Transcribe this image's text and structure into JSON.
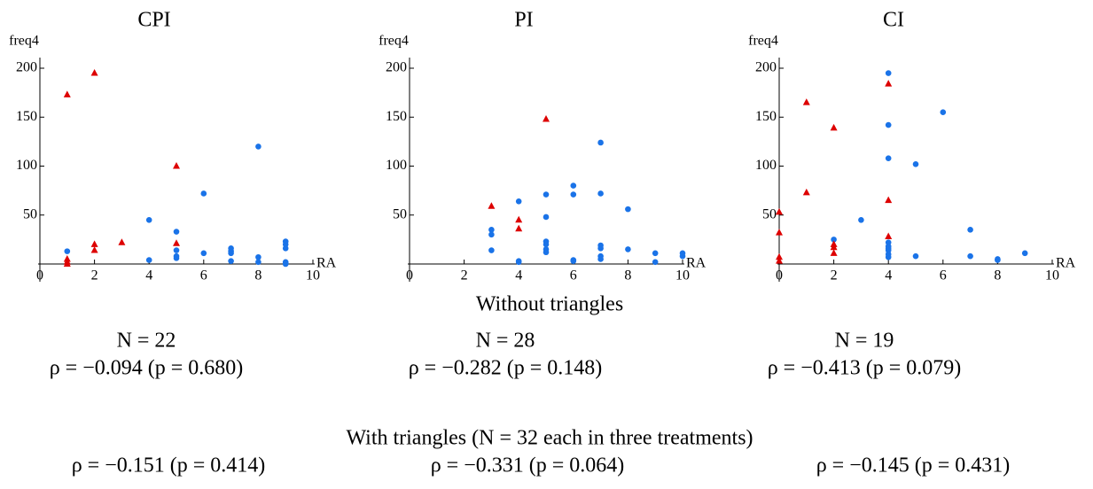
{
  "chart_data": [
    {
      "type": "scatter",
      "title": "CPI",
      "x_label": "RA",
      "y_label": "freq4",
      "xlim": [
        0,
        10
      ],
      "ylim": [
        0,
        200
      ],
      "xticks": [
        0,
        2,
        4,
        6,
        8,
        10
      ],
      "yticks": [
        50,
        100,
        150,
        200
      ],
      "series": [
        {
          "marker": "circle",
          "color": "#1a73e8",
          "x": [
            1,
            4,
            4,
            5,
            5,
            5,
            5,
            6,
            6,
            7,
            7,
            7,
            7,
            8,
            8,
            8,
            9,
            9,
            9,
            9,
            9,
            9
          ],
          "values": [
            13,
            45,
            4,
            33,
            14,
            8,
            6,
            72,
            11,
            16,
            13,
            11,
            3,
            120,
            7,
            2,
            23,
            20,
            16,
            2,
            1,
            0
          ]
        },
        {
          "marker": "triangle",
          "color": "#dd0000",
          "x": [
            1,
            1,
            1,
            1,
            2,
            2,
            2,
            3,
            5,
            5
          ],
          "values": [
            173,
            5,
            2,
            0,
            195,
            20,
            14,
            22,
            100,
            21
          ]
        }
      ]
    },
    {
      "type": "scatter",
      "title": "PI",
      "x_label": "RA",
      "y_label": "freq4",
      "xlim": [
        0,
        10
      ],
      "ylim": [
        0,
        200
      ],
      "xticks": [
        0,
        2,
        4,
        6,
        8,
        10
      ],
      "yticks": [
        50,
        100,
        150,
        200
      ],
      "series": [
        {
          "marker": "circle",
          "color": "#1a73e8",
          "x": [
            3,
            3,
            3,
            4,
            4,
            4,
            5,
            5,
            5,
            5,
            5,
            5,
            6,
            6,
            6,
            6,
            7,
            7,
            7,
            7,
            7,
            7,
            8,
            8,
            9,
            9,
            10,
            10
          ],
          "values": [
            35,
            30,
            14,
            64,
            3,
            2,
            71,
            48,
            23,
            20,
            15,
            12,
            80,
            71,
            4,
            3,
            124,
            72,
            19,
            16,
            8,
            5,
            56,
            15,
            11,
            2,
            11,
            8
          ]
        },
        {
          "marker": "triangle",
          "color": "#dd0000",
          "x": [
            3,
            4,
            4,
            5
          ],
          "values": [
            59,
            45,
            36,
            148
          ]
        }
      ]
    },
    {
      "type": "scatter",
      "title": "CI",
      "x_label": "RA",
      "y_label": "freq4",
      "xlim": [
        0,
        10
      ],
      "ylim": [
        0,
        200
      ],
      "xticks": [
        0,
        2,
        4,
        6,
        8,
        10
      ],
      "yticks": [
        50,
        100,
        150,
        200
      ],
      "series": [
        {
          "marker": "circle",
          "color": "#1a73e8",
          "x": [
            2,
            3,
            4,
            4,
            4,
            4,
            4,
            4,
            4,
            4,
            5,
            5,
            6,
            7,
            7,
            8,
            8,
            9,
            4
          ],
          "values": [
            25,
            45,
            195,
            142,
            108,
            22,
            18,
            14,
            10,
            7,
            102,
            8,
            155,
            35,
            8,
            5,
            4,
            11,
            16
          ]
        },
        {
          "marker": "triangle",
          "color": "#dd0000",
          "x": [
            0,
            0,
            0,
            0,
            1,
            1,
            2,
            2,
            2,
            2,
            4,
            4,
            4
          ],
          "values": [
            53,
            32,
            7,
            3,
            165,
            73,
            139,
            20,
            17,
            11,
            184,
            65,
            28
          ]
        }
      ]
    }
  ],
  "summary": {
    "without_heading": "Without triangles",
    "without": [
      {
        "n": "N = 22",
        "rho": "ρ = −0.094 (p = 0.680)"
      },
      {
        "n": "N = 28",
        "rho": "ρ = −0.282 (p = 0.148)"
      },
      {
        "n": "N = 19",
        "rho": "ρ = −0.413 (p = 0.079)"
      }
    ],
    "with_heading": "With triangles (N = 32 each in three treatments)",
    "with": [
      "ρ = −0.151 (p = 0.414)",
      "ρ = −0.331 (p = 0.064)",
      "ρ = −0.145 (p = 0.431)"
    ]
  }
}
